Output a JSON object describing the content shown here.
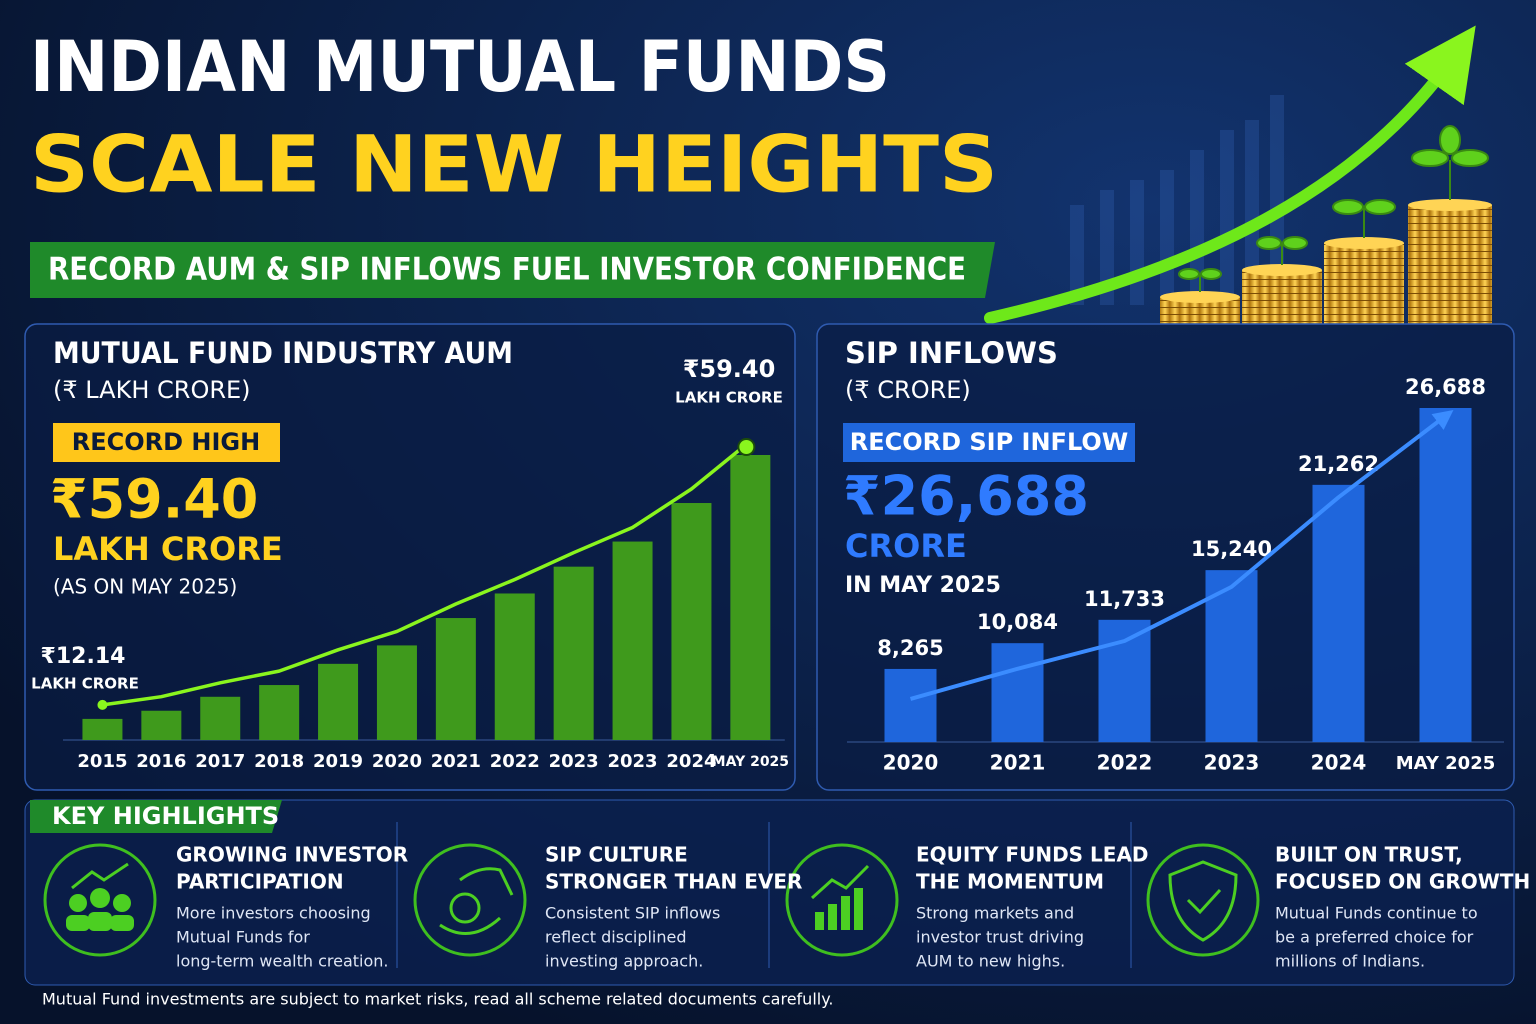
{
  "header": {
    "title_line1": "INDIAN MUTUAL FUNDS",
    "title_line2": "SCALE NEW HEIGHTS",
    "subtitle": "RECORD AUM & SIP INFLOWS FUEL INVESTOR CONFIDENCE"
  },
  "chart_data": [
    {
      "type": "bar",
      "title": "MUTUAL FUND INDUSTRY AUM",
      "subtitle": "(₹ LAKH CRORE)",
      "badge": "RECORD HIGH",
      "headline": "₹59.40",
      "headline_unit": "LAKH CRORE",
      "headline_note": "(AS ON MAY 2025)",
      "start_label": "₹12.14",
      "start_unit": "LAKH CRORE",
      "end_label": "₹59.40",
      "end_unit": "LAKH CRORE",
      "categories": [
        "2015",
        "2016",
        "2017",
        "2018",
        "2019",
        "2020",
        "2021",
        "2022",
        "2023",
        "2023",
        "2024",
        "MAY 2025"
      ],
      "values": [
        12.14,
        13.6,
        16.1,
        18.2,
        22.0,
        25.3,
        30.2,
        34.6,
        39.4,
        43.9,
        50.8,
        59.4
      ],
      "color": "#3f9a1c",
      "trend_line": true,
      "trend_color": "#8af51e"
    },
    {
      "type": "bar",
      "title": "SIP INFLOWS",
      "subtitle": "(₹ CRORE)",
      "badge": "RECORD SIP INFLOW",
      "headline": "₹26,688",
      "headline_unit": "CRORE",
      "headline_note": "IN MAY 2025",
      "categories": [
        "2020",
        "2021",
        "2022",
        "2023",
        "2024",
        "MAY 2025"
      ],
      "values": [
        8265,
        10084,
        11733,
        15240,
        21262,
        26688
      ],
      "value_labels": [
        "8,265",
        "10,084",
        "11,733",
        "15,240",
        "21,262",
        "26,688"
      ],
      "color": "#1f66dc",
      "trend_line": true,
      "trend_color": "#3b8cff"
    }
  ],
  "highlights": {
    "title": "KEY HIGHLIGHTS",
    "items": [
      {
        "title": [
          "GROWING INVESTOR",
          "PARTICIPATION"
        ],
        "text": [
          "More investors choosing",
          "Mutual Funds for",
          "long-term wealth creation."
        ]
      },
      {
        "title": [
          "SIP CULTURE",
          "STRONGER THAN EVER"
        ],
        "text": [
          "Consistent SIP inflows",
          "reflect disciplined",
          "investing approach."
        ]
      },
      {
        "title": [
          "EQUITY FUNDS LEAD",
          "THE MOMENTUM"
        ],
        "text": [
          "Strong markets and",
          "investor trust driving",
          "AUM to new highs."
        ]
      },
      {
        "title": [
          "BUILT ON TRUST,",
          "FOCUSED ON GROWTH"
        ],
        "text": [
          "Mutual Funds continue to",
          "be a preferred choice for",
          "millions of Indians."
        ]
      }
    ]
  },
  "disclaimer": "Mutual Fund investments are subject to market risks, read all scheme related documents carefully."
}
